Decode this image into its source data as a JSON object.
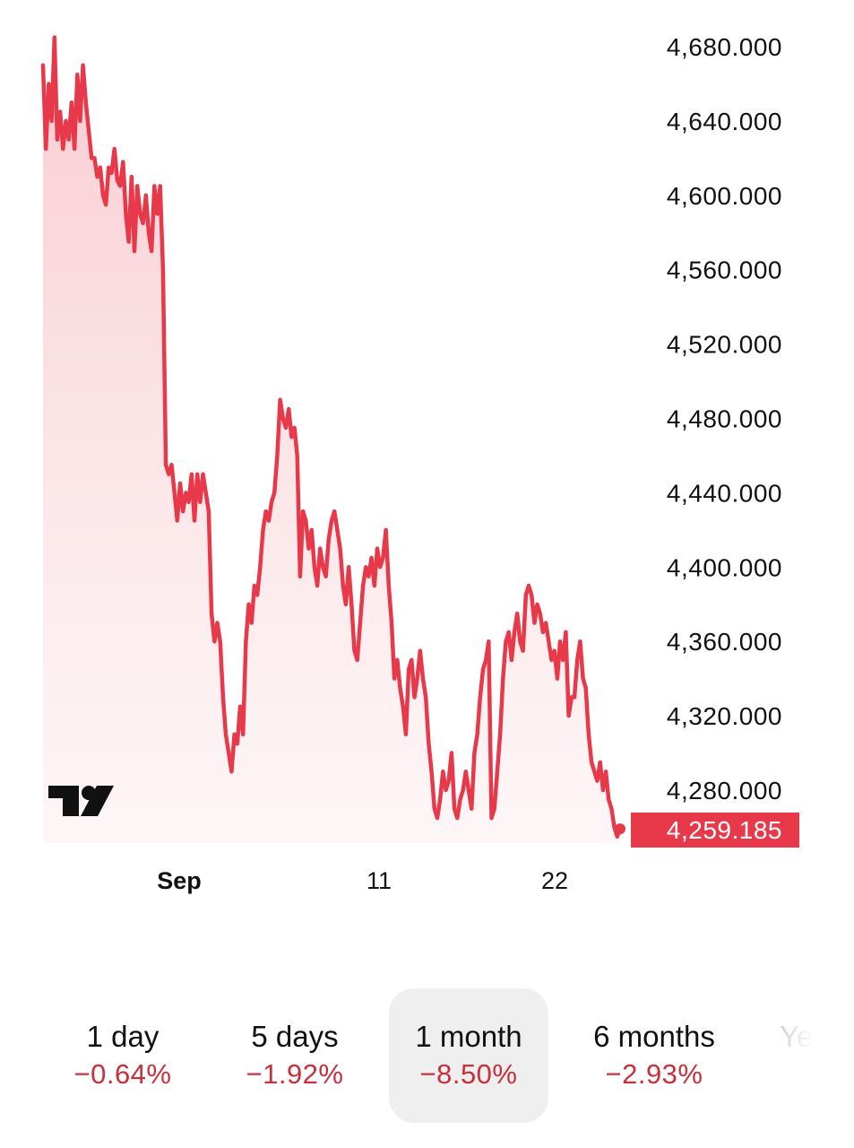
{
  "chart_data": {
    "type": "area",
    "ylim": [
      4250,
      4690
    ],
    "y_ticks": [
      "4,680.000",
      "4,640.000",
      "4,600.000",
      "4,560.000",
      "4,520.000",
      "4,480.000",
      "4,440.000",
      "4,400.000",
      "4,360.000",
      "4,320.000",
      "4,280.000"
    ],
    "y_tick_values": [
      4680,
      4640,
      4600,
      4560,
      4520,
      4480,
      4440,
      4400,
      4360,
      4320,
      4280
    ],
    "x_ticks": [
      {
        "label": "Sep",
        "bold": true
      },
      {
        "label": "11",
        "bold": false
      },
      {
        "label": "22",
        "bold": false
      }
    ],
    "last_value": 4259.185,
    "last_value_label": "4,259.185",
    "grid": false,
    "series": [
      {
        "values": [
          4670,
          4625,
          4660,
          4640,
          4685,
          4630,
          4645,
          4625,
          4640,
          4630,
          4650,
          4625,
          4665,
          4640,
          4670,
          4650,
          4635,
          4620,
          4620,
          4610,
          4615,
          4600,
          4595,
          4615,
          4612,
          4625,
          4608,
          4605,
          4618,
          4590,
          4575,
          4610,
          4570,
          4605,
          4590,
          4585,
          4600,
          4580,
          4570,
          4605,
          4590,
          4605,
          4560,
          4455,
          4450,
          4455,
          4440,
          4425,
          4445,
          4430,
          4440,
          4435,
          4450,
          4425,
          4450,
          4435,
          4450,
          4440,
          4430,
          4375,
          4360,
          4370,
          4360,
          4330,
          4310,
          4300,
          4290,
          4310,
          4305,
          4325,
          4310,
          4360,
          4380,
          4370,
          4390,
          4385,
          4400,
          4420,
          4430,
          4425,
          4435,
          4440,
          4460,
          4490,
          4480,
          4475,
          4485,
          4470,
          4475,
          4460,
          4395,
          4430,
          4425,
          4410,
          4420,
          4400,
          4390,
          4410,
          4400,
          4395,
          4415,
          4425,
          4430,
          4420,
          4410,
          4390,
          4380,
          4400,
          4380,
          4355,
          4350,
          4370,
          4390,
          4400,
          4395,
          4405,
          4390,
          4410,
          4400,
          4405,
          4420,
          4390,
          4370,
          4340,
          4350,
          4335,
          4325,
          4310,
          4345,
          4350,
          4330,
          4340,
          4355,
          4340,
          4330,
          4305,
          4290,
          4270,
          4265,
          4275,
          4290,
          4280,
          4285,
          4300,
          4270,
          4265,
          4275,
          4280,
          4290,
          4280,
          4270,
          4300,
          4310,
          4330,
          4345,
          4350,
          4360,
          4265,
          4270,
          4290,
          4310,
          4340,
          4360,
          4365,
          4350,
          4365,
          4375,
          4360,
          4355,
          4385,
          4390,
          4385,
          4370,
          4380,
          4375,
          4365,
          4370,
          4360,
          4350,
          4355,
          4340,
          4360,
          4350,
          4365,
          4320,
          4330,
          4330,
          4350,
          4360,
          4340,
          4335,
          4310,
          4295,
          4290,
          4285,
          4295,
          4280,
          4290,
          4275,
          4270,
          4260,
          4255,
          4259.185
        ]
      }
    ]
  },
  "range_selector": {
    "items": [
      {
        "label": "1 day",
        "change": "−0.64%",
        "active": false
      },
      {
        "label": "5 days",
        "change": "−1.92%",
        "active": false
      },
      {
        "label": "1 month",
        "change": "−8.50%",
        "active": true
      },
      {
        "label": "6 months",
        "change": "−2.93%",
        "active": false
      },
      {
        "label": "Year to date",
        "change": "",
        "active": false
      }
    ]
  },
  "colors": {
    "line": "#e8394a",
    "fill_top": "#f8c9ce",
    "negative_text": "#c8303b",
    "last_label_bg": "#e8394a",
    "active_range_bg": "#efefef"
  },
  "logo": {
    "icon": "tradingview-logo-icon"
  }
}
